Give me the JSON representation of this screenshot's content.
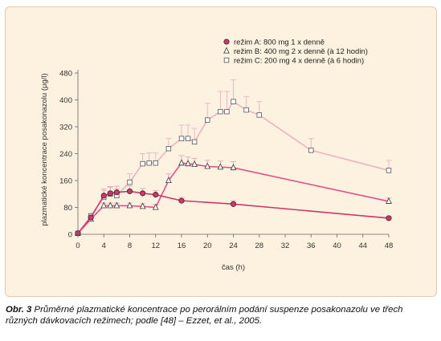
{
  "chart_data": {
    "type": "line",
    "xlabel": "čas (h)",
    "ylabel": "plazmatické koncentrace posakonazolu (μg/l)",
    "xlim": [
      0,
      48
    ],
    "ylim": [
      0,
      480
    ],
    "xticks": [
      0,
      4,
      8,
      12,
      16,
      20,
      24,
      28,
      32,
      36,
      40,
      44,
      48
    ],
    "yticks": [
      0,
      80,
      160,
      240,
      320,
      400,
      480
    ],
    "grid": false,
    "legend_position": "top-right",
    "series": [
      {
        "name": "režim A: 800 mg 1 x denně",
        "color": "#d0366a",
        "marker": "circle",
        "x": [
          0,
          2,
          4,
          5,
          6,
          8,
          10,
          12,
          16,
          24,
          48
        ],
        "y": [
          3,
          50,
          115,
          122,
          125,
          128,
          122,
          118,
          100,
          90,
          48
        ],
        "err": [
          0,
          5,
          20,
          20,
          18,
          16,
          14,
          12,
          10,
          10,
          5
        ]
      },
      {
        "name": "režim B: 400 mg 2 x denně (à 12 hodin)",
        "color": "#e2508a",
        "marker": "triangle",
        "x": [
          0,
          2,
          4,
          5,
          6,
          8,
          10,
          12,
          14,
          16,
          17,
          18,
          20,
          22,
          24,
          48
        ],
        "y": [
          3,
          45,
          85,
          85,
          85,
          85,
          83,
          80,
          160,
          212,
          210,
          208,
          202,
          200,
          198,
          98
        ],
        "err": [
          0,
          4,
          8,
          8,
          8,
          8,
          8,
          8,
          20,
          22,
          20,
          18,
          18,
          18,
          18,
          10
        ]
      },
      {
        "name": "režim C: 200 mg 4 x denně (à 6 hodin)",
        "color": "#ecb2c6",
        "marker": "square",
        "x": [
          0,
          2,
          4,
          5,
          6,
          8,
          10,
          11,
          12,
          14,
          16,
          17,
          18,
          20,
          22,
          23,
          24,
          26,
          28,
          36,
          48
        ],
        "y": [
          3,
          55,
          110,
          120,
          115,
          155,
          210,
          212,
          212,
          255,
          285,
          285,
          275,
          340,
          365,
          365,
          395,
          370,
          355,
          250,
          190
        ],
        "err": [
          0,
          5,
          20,
          20,
          20,
          25,
          30,
          30,
          30,
          30,
          40,
          40,
          40,
          50,
          60,
          60,
          65,
          40,
          40,
          35,
          30
        ]
      }
    ]
  },
  "caption": {
    "lead": "Obr. 3",
    "text": "Průměrné plazmatické koncentrace po perorálním podání suspenze posakonazolu ve třech různých dávkovacích režimech; podle [48] – Ezzet, et al., 2005."
  }
}
